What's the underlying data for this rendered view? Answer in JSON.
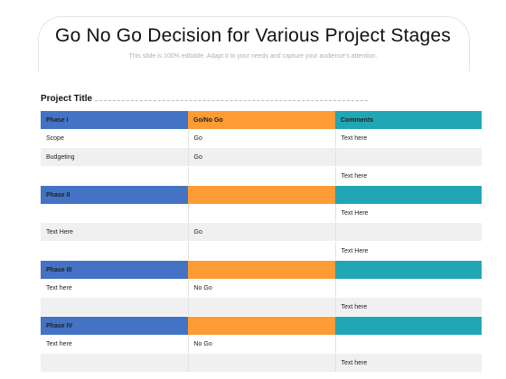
{
  "slide": {
    "title": "Go No Go Decision for Various Project Stages",
    "subtitle": "This slide is 100% editable. Adapt it to your needs and capture your audience's attention.",
    "project_title": "Project Title"
  },
  "colors": {
    "phase_blue": "#4472c4",
    "go_orange": "#fd9b35",
    "comments_teal": "#21a6b5"
  },
  "table": {
    "columns": [
      "Phase I",
      "Go/No Go",
      "Comments"
    ],
    "sections": [
      {
        "header": [
          "Phase I",
          "Go/No Go",
          "Comments"
        ],
        "rows": [
          [
            "Scope",
            "Go",
            "Text here"
          ],
          [
            "Budgeting",
            "Go",
            ""
          ],
          [
            "",
            "",
            "Text here"
          ]
        ]
      },
      {
        "header": [
          "Phase II",
          "",
          ""
        ],
        "rows": [
          [
            "",
            "",
            "Text Here"
          ],
          [
            "Text Here",
            "Go",
            ""
          ],
          [
            "",
            "",
            "Text Here"
          ]
        ]
      },
      {
        "header": [
          "Phase III",
          "",
          ""
        ],
        "rows": [
          [
            "Text here",
            "No Go",
            ""
          ],
          [
            "",
            "",
            "Text here"
          ]
        ]
      },
      {
        "header": [
          "Phase IV",
          "",
          ""
        ],
        "rows": [
          [
            "Text here",
            "No Go",
            ""
          ],
          [
            "",
            "",
            "Text here"
          ]
        ]
      }
    ]
  }
}
